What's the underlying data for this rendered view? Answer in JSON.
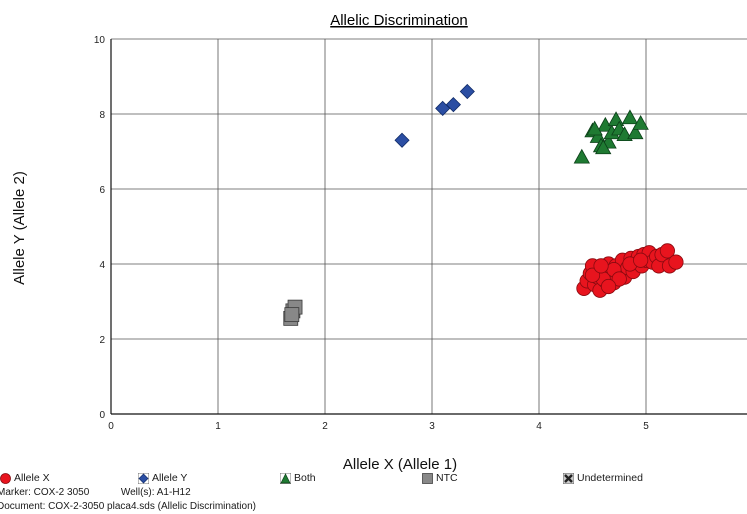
{
  "chart_data": {
    "type": "scatter",
    "title": "Allelic Discrimination",
    "xlabel": "Allele X (Allele 1)",
    "ylabel": "Allele Y (Allele 2)",
    "xlim": [
      0,
      6
    ],
    "ylim": [
      0,
      10
    ],
    "xticks": [
      "0",
      "1",
      "2",
      "3",
      "4",
      "5"
    ],
    "yticks": [
      "0",
      "2",
      "4",
      "6",
      "8",
      "10"
    ],
    "grid": true,
    "series": [
      {
        "name": "Allele X",
        "marker": "circle",
        "color": "#e8141e",
        "points": [
          [
            4.42,
            3.35
          ],
          [
            4.45,
            3.55
          ],
          [
            4.48,
            3.75
          ],
          [
            4.5,
            3.95
          ],
          [
            4.52,
            3.45
          ],
          [
            4.55,
            3.65
          ],
          [
            4.57,
            3.3
          ],
          [
            4.6,
            3.85
          ],
          [
            4.62,
            3.55
          ],
          [
            4.65,
            4.0
          ],
          [
            4.67,
            3.7
          ],
          [
            4.7,
            3.5
          ],
          [
            4.72,
            3.95
          ],
          [
            4.75,
            3.8
          ],
          [
            4.78,
            4.1
          ],
          [
            4.8,
            3.65
          ],
          [
            4.83,
            3.9
          ],
          [
            4.86,
            4.15
          ],
          [
            4.88,
            3.8
          ],
          [
            4.9,
            4.05
          ],
          [
            4.93,
            4.2
          ],
          [
            4.96,
            3.95
          ],
          [
            4.98,
            4.25
          ],
          [
            5.0,
            4.1
          ],
          [
            5.03,
            4.3
          ],
          [
            5.06,
            4.05
          ],
          [
            5.1,
            4.2
          ],
          [
            5.12,
            3.95
          ],
          [
            5.15,
            4.25
          ],
          [
            5.2,
            4.35
          ],
          [
            5.22,
            3.95
          ],
          [
            5.28,
            4.05
          ],
          [
            4.6,
            3.6
          ],
          [
            4.5,
            3.7
          ],
          [
            4.7,
            3.85
          ],
          [
            4.85,
            4.0
          ],
          [
            4.58,
            3.95
          ],
          [
            4.95,
            4.1
          ],
          [
            4.75,
            3.6
          ],
          [
            4.65,
            3.4
          ]
        ]
      },
      {
        "name": "Allele Y",
        "marker": "diamond",
        "color": "#2b4ea3",
        "points": [
          [
            2.72,
            7.3
          ],
          [
            3.1,
            8.15
          ],
          [
            3.2,
            8.25
          ],
          [
            3.33,
            8.6
          ]
        ]
      },
      {
        "name": "Both",
        "marker": "triangle",
        "color": "#1f7a32",
        "points": [
          [
            4.4,
            6.85
          ],
          [
            4.5,
            7.55
          ],
          [
            4.55,
            7.4
          ],
          [
            4.58,
            7.15
          ],
          [
            4.62,
            7.7
          ],
          [
            4.65,
            7.25
          ],
          [
            4.68,
            7.5
          ],
          [
            4.72,
            7.85
          ],
          [
            4.75,
            7.6
          ],
          [
            4.8,
            7.45
          ],
          [
            4.85,
            7.9
          ],
          [
            4.9,
            7.5
          ],
          [
            4.95,
            7.75
          ],
          [
            4.6,
            7.1
          ],
          [
            4.52,
            7.6
          ]
        ]
      },
      {
        "name": "NTC",
        "marker": "square",
        "color": "#888888",
        "points": [
          [
            1.68,
            2.55
          ],
          [
            1.7,
            2.75
          ],
          [
            1.72,
            2.85
          ],
          [
            1.69,
            2.65
          ]
        ]
      },
      {
        "name": "Undetermined",
        "marker": "x",
        "color": "#444444",
        "points": []
      }
    ]
  },
  "legend": {
    "allele_x": "Allele X",
    "allele_y": "Allele Y",
    "both": "Both",
    "ntc": "NTC",
    "undetermined": "Undetermined"
  },
  "footer": {
    "marker": "Marker: COX-2 3050",
    "wells": "Well(s):  A1-H12",
    "document": "Document: COX-2-3050 placa4.sds (Allelic Discrimination)"
  }
}
